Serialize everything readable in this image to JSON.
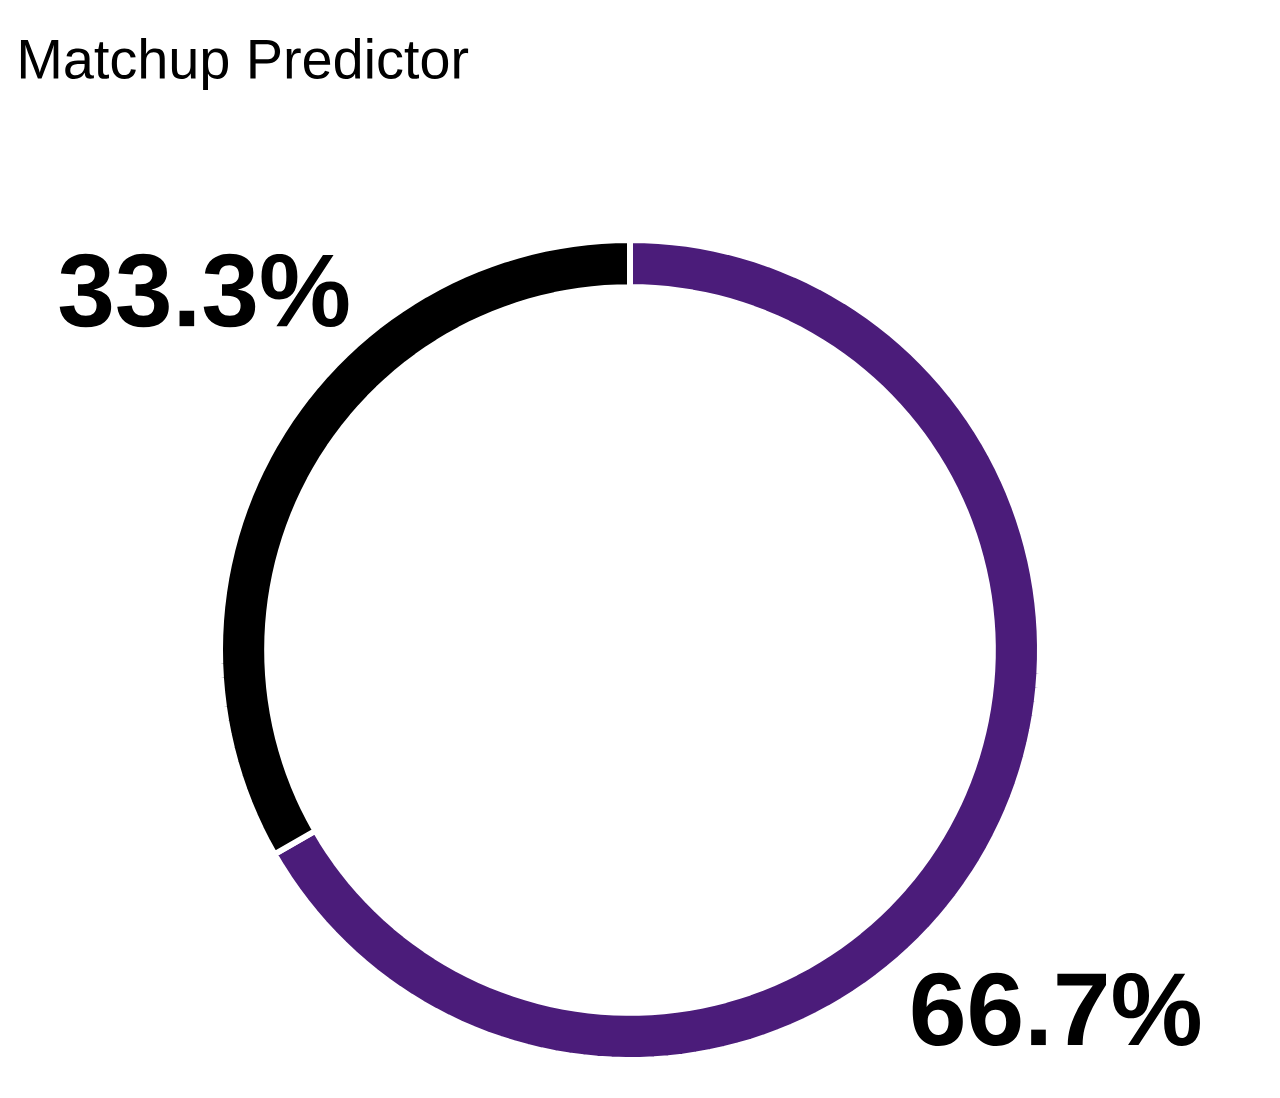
{
  "chart_data": {
    "type": "donut",
    "title": "Matchup Predictor",
    "categories": [
      null,
      null
    ],
    "values": [
      66.7,
      33.3
    ],
    "colors": [
      "#4b1c7a",
      "#000000"
    ],
    "value_labels": [
      "66.7%",
      "33.3%"
    ]
  }
}
